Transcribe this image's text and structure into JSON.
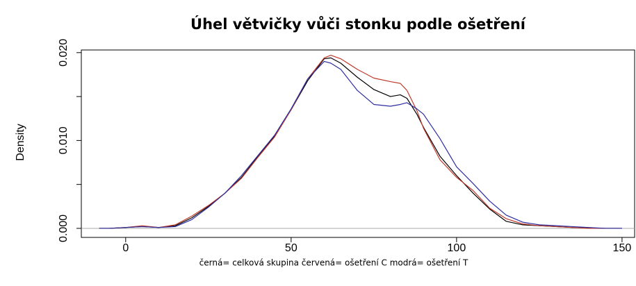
{
  "chart_data": {
    "type": "line",
    "title": "Úhel větvičky vůči stonku podle ošetření",
    "ylabel": "Density",
    "xlabel": "černá= celková skupina    červená= ošetření C    modrá= ošetření T",
    "x": [
      -8,
      -5,
      0,
      5,
      10,
      15,
      20,
      25,
      30,
      35,
      40,
      45,
      50,
      55,
      60,
      62,
      65,
      70,
      75,
      80,
      83,
      85,
      88,
      90,
      95,
      100,
      105,
      110,
      115,
      120,
      125,
      130,
      135,
      140,
      145,
      150
    ],
    "series": [
      {
        "color": "#000000",
        "values": [
          0,
          0,
          0.0001,
          0.0002,
          0.0001,
          0.0003,
          0.0012,
          0.0025,
          0.004,
          0.0058,
          0.0082,
          0.0105,
          0.0135,
          0.0168,
          0.0193,
          0.0194,
          0.0188,
          0.0172,
          0.0158,
          0.015,
          0.0152,
          0.0148,
          0.013,
          0.0115,
          0.0082,
          0.006,
          0.004,
          0.0022,
          0.0008,
          0.0004,
          0.0003,
          0.0002,
          0.0001,
          5e-05,
          0,
          0
        ]
      },
      {
        "color": "#c0392b",
        "values": [
          0,
          0,
          0.0001,
          0.0003,
          0.0001,
          0.0004,
          0.0014,
          0.0026,
          0.004,
          0.0057,
          0.0081,
          0.0104,
          0.0135,
          0.017,
          0.0194,
          0.0197,
          0.0193,
          0.0181,
          0.0171,
          0.0167,
          0.0165,
          0.0157,
          0.0134,
          0.0114,
          0.0078,
          0.0058,
          0.0043,
          0.0023,
          0.0011,
          0.0005,
          0.0003,
          0.0002,
          0.0001,
          0,
          0,
          0
        ]
      },
      {
        "color": "#2c2ca0",
        "values": [
          0,
          0,
          0.0001,
          0.0002,
          0.0001,
          0.0002,
          0.001,
          0.0024,
          0.004,
          0.006,
          0.0083,
          0.0106,
          0.0136,
          0.017,
          0.019,
          0.0188,
          0.0181,
          0.0157,
          0.0141,
          0.0139,
          0.0141,
          0.0143,
          0.0136,
          0.013,
          0.0102,
          0.007,
          0.0051,
          0.0031,
          0.0015,
          0.0007,
          0.0004,
          0.0003,
          0.0002,
          0.0001,
          0,
          0
        ]
      }
    ],
    "xlim": [
      -13.4,
      153.8
    ],
    "ylim": [
      -0.00103,
      0.0203
    ],
    "xticks": [
      0,
      50,
      100,
      150
    ],
    "yticks": [
      {
        "value": 0,
        "label": "0.000"
      },
      {
        "value": 0.005,
        "label": null
      },
      {
        "value": 0.01,
        "label": "0.010"
      },
      {
        "value": 0.015,
        "label": null
      },
      {
        "value": 0.02,
        "label": "0.020"
      }
    ],
    "baseline": 0
  }
}
